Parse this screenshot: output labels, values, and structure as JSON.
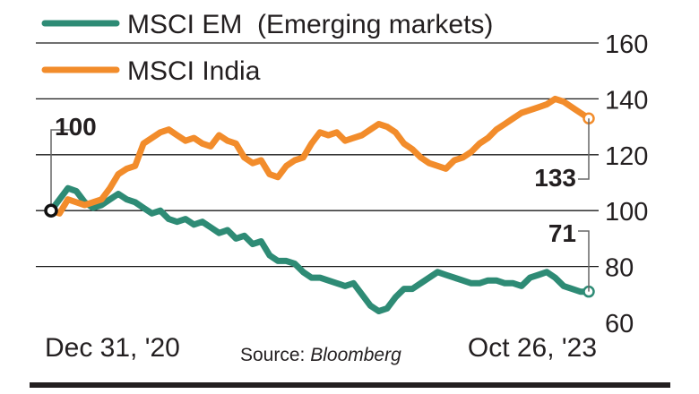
{
  "chart_data": {
    "type": "line",
    "source_prefix": "Source: ",
    "source_name": "Bloomberg",
    "x_labels": [
      "Dec 31, '20",
      "Oct 26, '23"
    ],
    "start_label": "100",
    "end_labels": {
      "india": "133",
      "em": "71"
    },
    "ylim": [
      60,
      160
    ],
    "y_ticks": [
      60,
      80,
      100,
      120,
      140,
      160
    ],
    "grid": true,
    "legend_placement": "top-left",
    "series": [
      {
        "key": "em",
        "name": "MSCI EM  (Emerging markets)",
        "color": "#2e8b75",
        "values": [
          100,
          104,
          108,
          107,
          103,
          101,
          102,
          104,
          106,
          104,
          103,
          101,
          99,
          100,
          97,
          96,
          97,
          95,
          96,
          94,
          92,
          93,
          90,
          91,
          88,
          89,
          84,
          82,
          82,
          81,
          78,
          76,
          76,
          75,
          74,
          73,
          74,
          70,
          66,
          64,
          65,
          69,
          72,
          72,
          74,
          76,
          78,
          77,
          76,
          75,
          74,
          74,
          75,
          75,
          74,
          74,
          73,
          76,
          77,
          78,
          76,
          73,
          72,
          71,
          71
        ]
      },
      {
        "key": "india",
        "name": "MSCI India",
        "color": "#f28c2b",
        "values": [
          100,
          99,
          104,
          103,
          102,
          103,
          104,
          108,
          113,
          115,
          116,
          124,
          126,
          128,
          129,
          127,
          125,
          126,
          124,
          123,
          127,
          125,
          124,
          119,
          117,
          118,
          113,
          112,
          116,
          118,
          119,
          124,
          128,
          127,
          128,
          125,
          126,
          127,
          129,
          131,
          130,
          128,
          124,
          122,
          119,
          117,
          116,
          115,
          118,
          119,
          121,
          124,
          126,
          129,
          131,
          133,
          135,
          136,
          137,
          138,
          140,
          139,
          137,
          135,
          133
        ]
      }
    ],
    "colors": {
      "grid": "#1a1a1a",
      "axis_text": "#231f20",
      "footer_rule": "#231f20",
      "leader": "#666666"
    }
  }
}
